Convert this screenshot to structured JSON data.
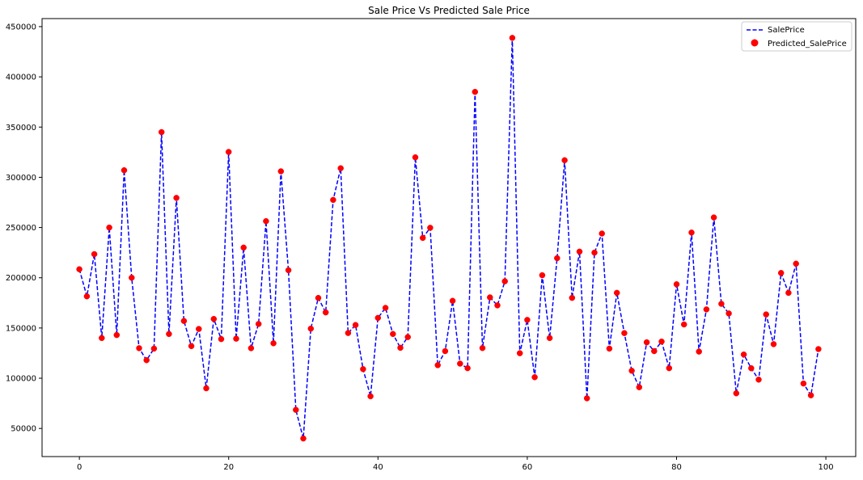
{
  "chart_data": {
    "type": "line",
    "title": "Sale Price Vs Predicted Sale Price",
    "xlabel": "",
    "ylabel": "",
    "xlim": [
      -5,
      104
    ],
    "ylim": [
      22000,
      458000
    ],
    "xticks": [
      0,
      20,
      40,
      60,
      80,
      100
    ],
    "xtick_labels": [
      "0",
      "20",
      "40",
      "60",
      "80",
      "100"
    ],
    "yticks": [
      50000,
      100000,
      150000,
      200000,
      250000,
      300000,
      350000,
      400000,
      450000
    ],
    "ytick_labels": [
      "50000",
      "100000",
      "150000",
      "200000",
      "250000",
      "300000",
      "350000",
      "400000",
      "450000"
    ],
    "grid": false,
    "legend_position": "upper right",
    "x": [
      0,
      1,
      2,
      3,
      4,
      5,
      6,
      7,
      8,
      9,
      10,
      11,
      12,
      13,
      14,
      15,
      16,
      17,
      18,
      19,
      20,
      21,
      22,
      23,
      24,
      25,
      26,
      27,
      28,
      29,
      30,
      31,
      32,
      33,
      34,
      35,
      36,
      37,
      38,
      39,
      40,
      41,
      42,
      43,
      44,
      45,
      46,
      47,
      48,
      49,
      50,
      51,
      52,
      53,
      54,
      55,
      56,
      57,
      58,
      59,
      60,
      61,
      62,
      63,
      64,
      65,
      66,
      67,
      68,
      69,
      70,
      71,
      72,
      73,
      74,
      75,
      76,
      77,
      78,
      79,
      80,
      81,
      82,
      83,
      84,
      85,
      86,
      87,
      88,
      89,
      90,
      91,
      92,
      93,
      94,
      95,
      96,
      97,
      98,
      99
    ],
    "series": [
      {
        "name": "SalePrice",
        "style": "dashed-line",
        "color": "#0000ff",
        "values": [
          208500,
          181500,
          223500,
          140000,
          250000,
          143000,
          307000,
          200000,
          129900,
          118000,
          129500,
          345000,
          144000,
          279500,
          157000,
          132000,
          149000,
          90000,
          159000,
          139000,
          325300,
          139400,
          230000,
          129900,
          154000,
          256300,
          134800,
          306000,
          207500,
          68500,
          40000,
          149350,
          179900,
          165500,
          277500,
          309000,
          145000,
          153000,
          109000,
          82000,
          160000,
          170000,
          144000,
          130250,
          141000,
          319900,
          239686,
          249700,
          113000,
          127000,
          177000,
          114500,
          110000,
          385000,
          130000,
          180500,
          172500,
          196500,
          438780,
          124900,
          158000,
          101000,
          202500,
          140000,
          219500,
          317000,
          180000,
          226000,
          80000,
          225000,
          244000,
          129500,
          185000,
          144900,
          107400,
          91000,
          135750,
          127000,
          136500,
          110000,
          193500,
          153500,
          245000,
          126500,
          168500,
          260000,
          174000,
          164500,
          85000,
          123600,
          109900,
          98600,
          163500,
          133900,
          204750,
          185000,
          214000,
          94750,
          83000,
          128950
        ]
      },
      {
        "name": "Predicted_SalePrice",
        "style": "markers",
        "color": "#ff0000",
        "values": [
          208500,
          181500,
          223500,
          140000,
          250000,
          143000,
          307000,
          200000,
          129900,
          118000,
          129500,
          345000,
          144000,
          279500,
          157000,
          132000,
          149000,
          90000,
          159000,
          139000,
          325300,
          139400,
          230000,
          129900,
          154000,
          256300,
          134800,
          306000,
          207500,
          68500,
          40000,
          149350,
          179900,
          165500,
          277500,
          309000,
          145000,
          153000,
          109000,
          82000,
          160000,
          170000,
          144000,
          130250,
          141000,
          319900,
          239686,
          249700,
          113000,
          127000,
          177000,
          114500,
          110000,
          385000,
          130000,
          180500,
          172500,
          196500,
          438780,
          124900,
          158000,
          101000,
          202500,
          140000,
          219500,
          317000,
          180000,
          226000,
          80000,
          225000,
          244000,
          129500,
          185000,
          144900,
          107400,
          91000,
          135750,
          127000,
          136500,
          110000,
          193500,
          153500,
          245000,
          126500,
          168500,
          260000,
          174000,
          164500,
          85000,
          123600,
          109900,
          98600,
          163500,
          133900,
          204750,
          185000,
          214000,
          94750,
          83000,
          128950
        ]
      }
    ]
  }
}
